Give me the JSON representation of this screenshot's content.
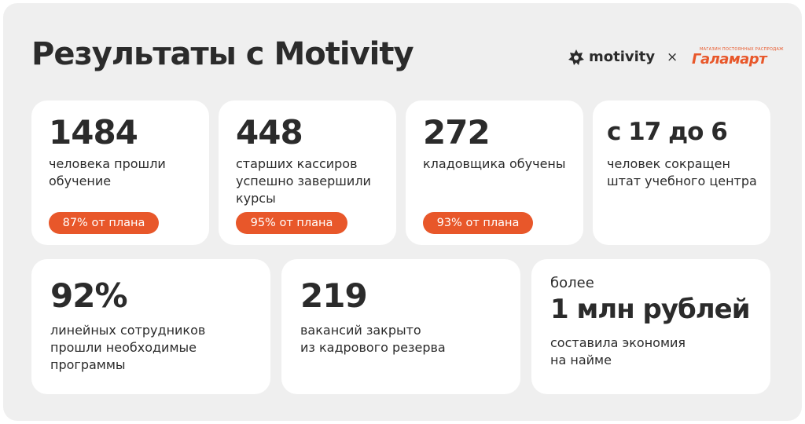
{
  "header": {
    "title": "Результаты с Motivity",
    "logos": {
      "motivity": "motivity",
      "separator": "×",
      "galamart_tagline": "МАГАЗИН ПОСТОЯННЫХ РАСПРОДАЖ",
      "galamart": "Галамарт"
    }
  },
  "colors": {
    "accent": "#e8572a",
    "card": "#ffffff",
    "background": "#efefef",
    "text": "#2b2b2b"
  },
  "stats_row1": [
    {
      "value": "1484",
      "desc": [
        "человека прошли",
        "обучение"
      ],
      "badge": "87% от плана"
    },
    {
      "value": "448",
      "desc": [
        "старших кассиров",
        "успешно завершили",
        "курсы"
      ],
      "badge": "95% от плана"
    },
    {
      "value": "272",
      "desc": [
        "кладовщика обучены"
      ],
      "badge": "93% от плана"
    },
    {
      "value": "с 17 до 6",
      "desc": [
        "человек сокращен",
        "штат учебного центра"
      ]
    }
  ],
  "stats_row2": [
    {
      "value": "92%",
      "desc": [
        "линейных сотрудников",
        "прошли необходимые",
        "программы"
      ]
    },
    {
      "value": "219",
      "desc": [
        "вакансий закрыто",
        "из кадрового резерва"
      ]
    },
    {
      "prefix": "более",
      "value": "1 млн рублей",
      "desc": [
        "составила экономия",
        "на найме"
      ]
    }
  ]
}
